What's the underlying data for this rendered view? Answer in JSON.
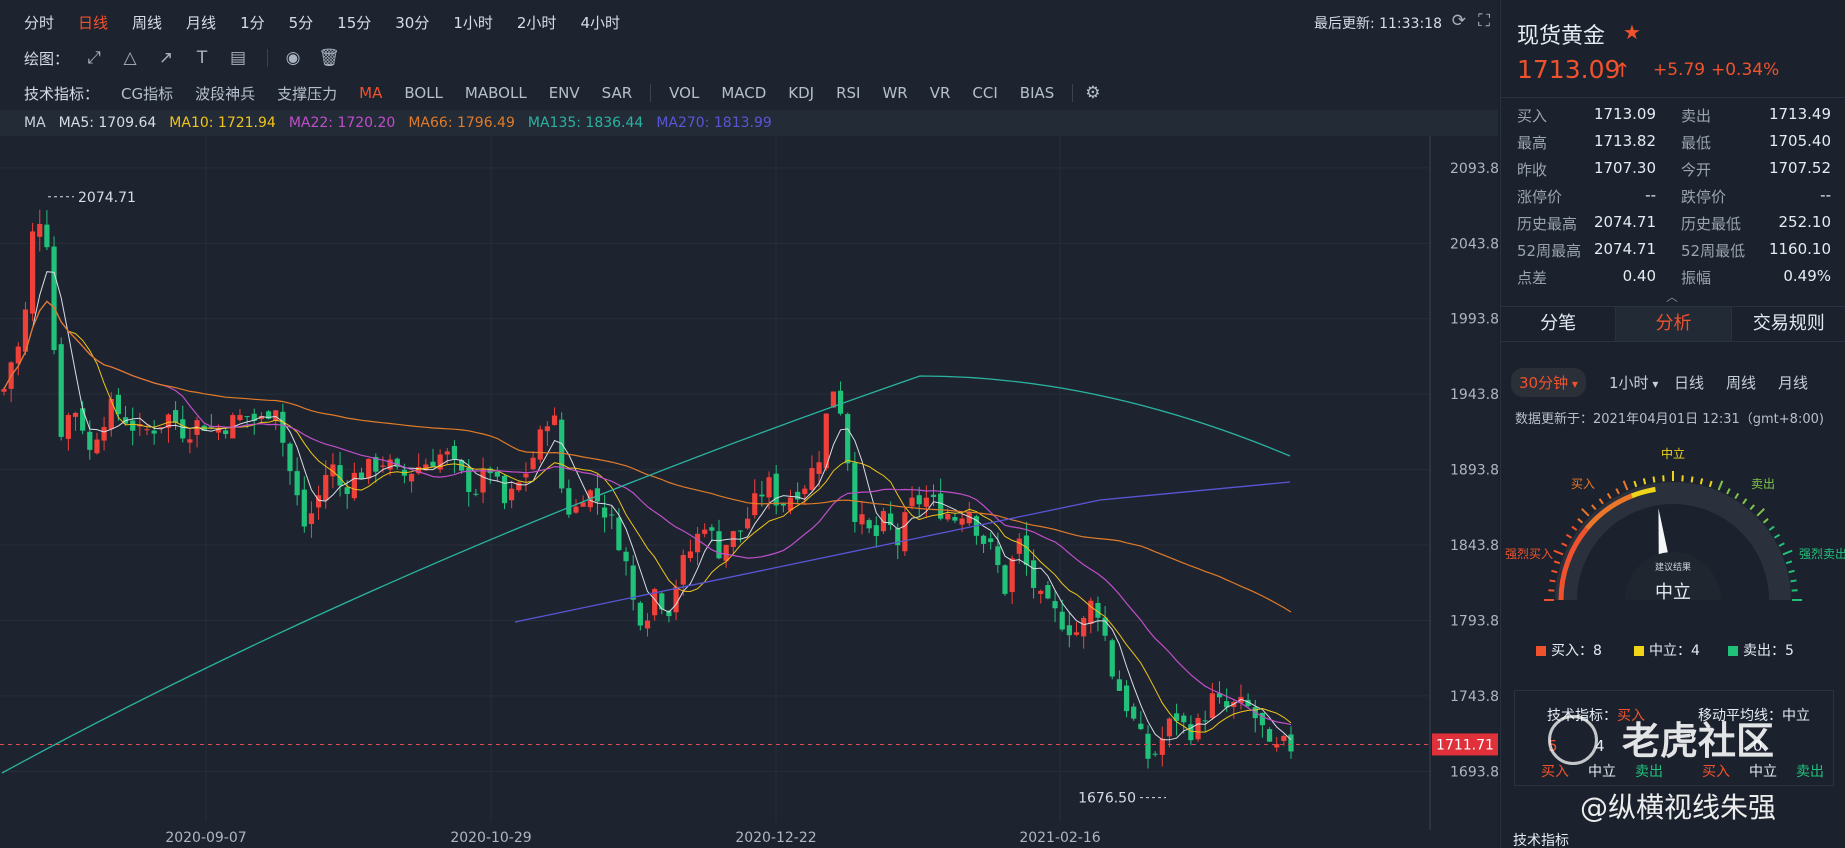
{
  "toolbar": {
    "timeframes": [
      "分时",
      "日线",
      "周线",
      "月线",
      "1分",
      "5分",
      "15分",
      "30分",
      "1小时",
      "2小时",
      "4小时"
    ],
    "active_timeframe": "日线",
    "last_update_label": "最后更新: 11:33:18",
    "drawing_label": "绘图：",
    "drawing_tools": [
      "line-tool-icon",
      "triangle-tool-icon",
      "arrow-tool-icon",
      "text-tool-icon",
      "gann-tool-icon",
      "eye-icon",
      "trash-icon"
    ],
    "indicator_label": "技术指标：",
    "indicators": [
      "CG指标",
      "波段神兵",
      "支撑压力",
      "MA",
      "BOLL",
      "MABOLL",
      "ENV",
      "SAR",
      "VOL",
      "MACD",
      "KDJ",
      "RSI",
      "WR",
      "VR",
      "CCI",
      "BIAS"
    ],
    "active_indicator": "MA"
  },
  "ma_legend": {
    "label": "MA",
    "items": [
      {
        "text": "MA5: 1709.64",
        "color": "#d9dde3"
      },
      {
        "text": "MA10: 1721.94",
        "color": "#f0c419"
      },
      {
        "text": "MA22: 1720.20",
        "color": "#c04ec9"
      },
      {
        "text": "MA66: 1796.49",
        "color": "#e07b27"
      },
      {
        "text": "MA135: 1836.44",
        "color": "#2bb3a0"
      },
      {
        "text": "MA270: 1813.99",
        "color": "#5a55d6"
      }
    ]
  },
  "chart_data": {
    "type": "candlestick",
    "y_ticks": [
      "2093.88",
      "2043.88",
      "1993.88",
      "1943.88",
      "1893.88",
      "1843.88",
      "1793.88",
      "1743.88",
      "1693.88"
    ],
    "x_labels": [
      "2020-09-07",
      "2020-10-29",
      "2020-12-22",
      "2021-02-16"
    ],
    "ylim": [
      1655,
      2115
    ],
    "current_price": "1711.71",
    "max_label": "2074.71",
    "min_label": "1676.50",
    "up_color": "#f0403a",
    "down_color": "#21c17a"
  },
  "quote": {
    "title": "现货黄金",
    "price": "1713.09",
    "change": "+5.79",
    "pct": "+0.34%",
    "rows": [
      [
        "买入",
        "1713.09",
        "卖出",
        "1713.49"
      ],
      [
        "最高",
        "1713.82",
        "最低",
        "1705.40"
      ],
      [
        "昨收",
        "1707.30",
        "今开",
        "1707.52"
      ],
      [
        "涨停价",
        "--",
        "跌停价",
        "--"
      ],
      [
        "历史最高",
        "2074.71",
        "历史最低",
        "252.10"
      ],
      [
        "52周最高",
        "2074.71",
        "52周最低",
        "1160.10"
      ],
      [
        "点差",
        "0.40",
        "振幅",
        "0.49%"
      ]
    ]
  },
  "tabs": [
    "分笔",
    "分析",
    "交易规则"
  ],
  "active_tab": "分析",
  "analysis": {
    "periods": [
      "30分钟",
      "1小时",
      "日线",
      "周线",
      "月线"
    ],
    "active_period": "30分钟",
    "update_text": "数据更新于：2021年04月01日 12:31（gmt+8:00)",
    "gauge_labels": {
      "neutral_top": "中立",
      "buy": "买入",
      "sell": "卖出",
      "strong_buy": "强烈买入",
      "strong_sell": "强烈卖出",
      "center_small": "建议结果",
      "center": "中立"
    },
    "gauge_value": 0.45,
    "legend": [
      {
        "label": "买入：8",
        "color": "#f0522d"
      },
      {
        "label": "中立：4",
        "color": "#f0d419"
      },
      {
        "label": "卖出：5",
        "color": "#21c17a"
      }
    ],
    "summary": {
      "tech_label": "技术指标：",
      "tech_value": "买入",
      "ma_label": "移动平均线：",
      "ma_value": "中立",
      "left_nums": [
        "5",
        "4"
      ],
      "right_nums": [
        "0"
      ],
      "sub_labels": [
        "买入",
        "中立",
        "卖出"
      ]
    },
    "bottom_title": "技术指标"
  },
  "watermark": {
    "text": "老虎社区",
    "author": "@纵横视线朱强"
  }
}
